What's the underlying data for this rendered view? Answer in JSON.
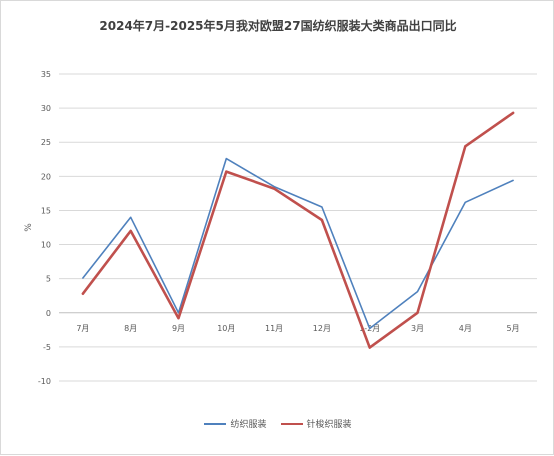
{
  "chart_data": {
    "type": "line",
    "title": "2024年7月-2025年5月我对欧盟27国纺织服装大类商品出口同比",
    "xlabel": "",
    "ylabel": "%",
    "categories": [
      "7月",
      "8月",
      "9月",
      "10月",
      "11月",
      "12月",
      "1-2月",
      "3月",
      "4月",
      "5月"
    ],
    "ylim": [
      -10,
      35
    ],
    "yticks": [
      35,
      30,
      25,
      20,
      15,
      10,
      5,
      0,
      -5,
      -10
    ],
    "grid": true,
    "legend_position": "bottom",
    "series": [
      {
        "name": "纺织服装",
        "color": "#4f81bd",
        "values": [
          5.1,
          14.0,
          0.0,
          22.6,
          18.5,
          15.5,
          -2.3,
          3.1,
          16.2,
          19.4
        ]
      },
      {
        "name": "针梭织服装",
        "color": "#c0504d",
        "values": [
          2.8,
          12.0,
          -0.8,
          20.7,
          18.2,
          13.6,
          -5.1,
          0.0,
          24.4,
          29.3
        ]
      }
    ]
  }
}
